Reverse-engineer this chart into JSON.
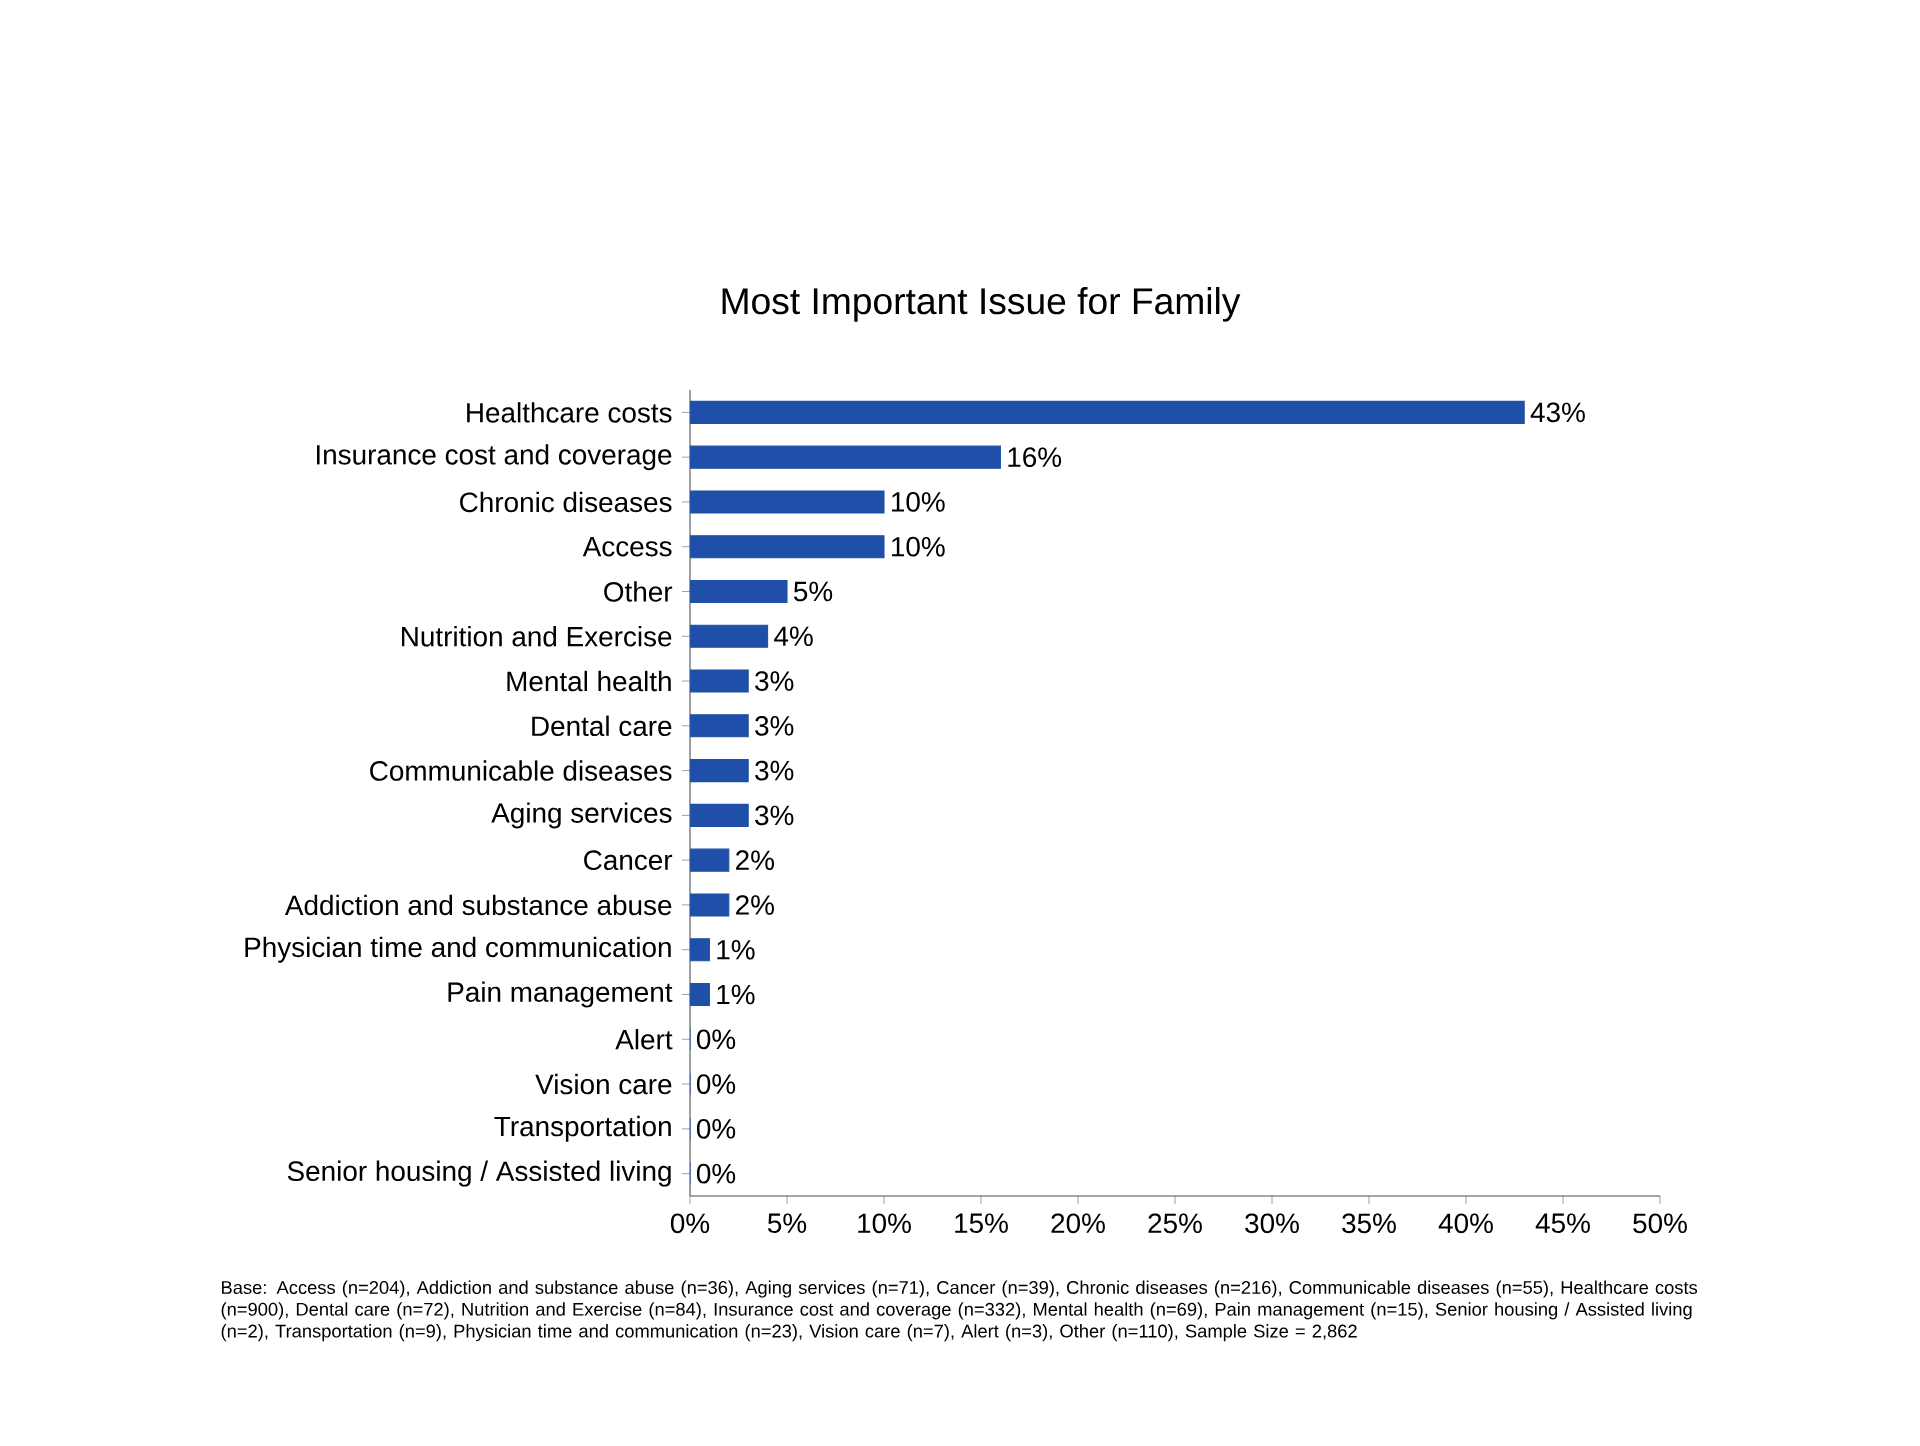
{
  "chart_data": {
    "type": "bar",
    "orientation": "horizontal",
    "title": "Most Important Issue for Family",
    "categories": [
      "Healthcare costs",
      "Insurance cost and coverage",
      "Chronic diseases",
      "Access",
      "Other",
      "Nutrition and Exercise",
      "Mental health",
      "Dental care",
      "Communicable diseases",
      "Aging services",
      "Cancer",
      "Addiction and substance abuse",
      "Physician time and communication",
      "Pain management",
      "Alert",
      "Vision care",
      "Transportation",
      "Senior housing / Assisted living"
    ],
    "values": [
      43,
      16,
      10,
      10,
      5,
      4,
      3,
      3,
      3,
      3,
      2,
      2,
      1,
      1,
      0,
      0,
      0,
      0
    ],
    "value_labels": [
      "43%",
      "16%",
      "10%",
      "10%",
      "5%",
      "4%",
      "3%",
      "3%",
      "3%",
      "3%",
      "2%",
      "2%",
      "1%",
      "1%",
      "0%",
      "0%",
      "0%",
      "0%"
    ],
    "color": "#1f4fa8",
    "xlim": [
      0,
      50
    ],
    "xticks": [
      {
        "value": 0,
        "label": "0%"
      },
      {
        "value": 5,
        "label": "5%"
      },
      {
        "value": 10,
        "label": "10%"
      },
      {
        "value": 15,
        "label": "15%"
      },
      {
        "value": 20,
        "label": "20%"
      },
      {
        "value": 25,
        "label": "25%"
      },
      {
        "value": 30,
        "label": "30%"
      },
      {
        "value": 35,
        "label": "35%"
      },
      {
        "value": 40,
        "label": "40%"
      },
      {
        "value": 45,
        "label": "45%"
      },
      {
        "value": 50,
        "label": "50%"
      }
    ],
    "grid": false,
    "annotations": [
      "Base: Access (n=204), Addiction and substance abuse (n=36), Aging services (n=71), Cancer (n=39), Chronic diseases (n=216), Communicable diseases (n=55), Healthcare costs (n=900), Dental care (n=72), Nutrition and Exercise (n=84), Insurance cost and coverage (n=332), Mental health (n=69), Pain management (n=15), Senior housing / Assisted living (n=2), Transportation (n=9), Physician time and communication (n=23), Vision care (n=7), Alert (n=3), Other (n=110), Sample Size = 2,862"
    ]
  }
}
